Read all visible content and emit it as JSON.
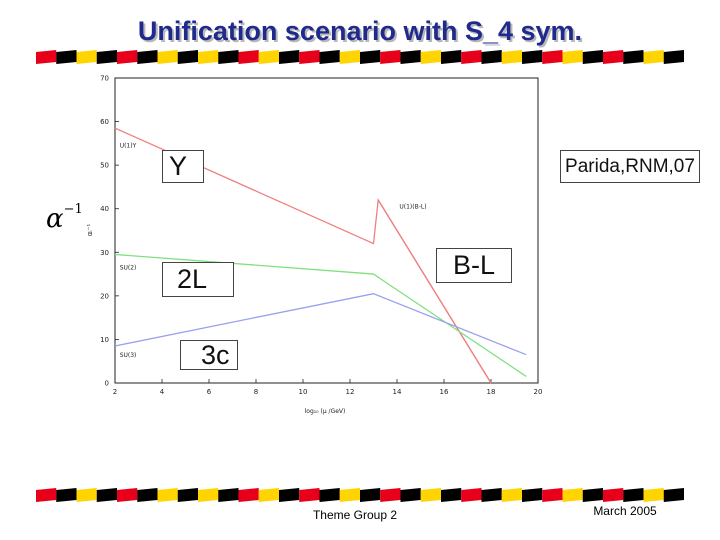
{
  "slide": {
    "title": "Unification scenario with S_4 sym.",
    "footer_center": "Theme Group 2",
    "footer_right": "March 2005"
  },
  "stripe_colors": [
    "#e8001a",
    "#000000",
    "#ffd400"
  ],
  "annotations": {
    "y_label": "Y",
    "parida": "Parida,RNM,07",
    "two_l": "2L",
    "b_minus_l": "B-L",
    "three_c": "3c",
    "alpha_symbol": "α",
    "alpha_exponent": "−1"
  },
  "chart_data": {
    "type": "line",
    "xlabel": "log₁₀ (μ /GeV)",
    "ylabel": "αᵢ⁻¹",
    "xlim": [
      2,
      20
    ],
    "ylim": [
      0,
      70
    ],
    "xticks": [
      "2",
      "4",
      "6",
      "8",
      "10",
      "12",
      "14",
      "16",
      "18",
      "20"
    ],
    "yticks": [
      "0",
      "10",
      "20",
      "30",
      "40",
      "50",
      "60",
      "70"
    ],
    "grid": false,
    "series": [
      {
        "name": "U(1)Y",
        "color": "#ef8080",
        "x": [
          2,
          13,
          13.2,
          18
        ],
        "y": [
          58.5,
          32,
          42,
          0
        ]
      },
      {
        "name": "U(1)(B-L)",
        "color": "#ef8080",
        "x": [
          13.2,
          18
        ],
        "y": [
          42,
          0
        ]
      },
      {
        "name": "SU(2)",
        "color": "#80e080",
        "x": [
          2,
          13,
          19.5
        ],
        "y": [
          29.5,
          25,
          1.5
        ]
      },
      {
        "name": "SU(3)",
        "color": "#9aa0ee",
        "x": [
          2,
          13,
          19.5
        ],
        "y": [
          8.5,
          20.5,
          6.5
        ]
      }
    ],
    "curve_labels": [
      {
        "text": "U(1)Y",
        "x": 2.2,
        "y": 54
      },
      {
        "text": "U(1)(B-L)",
        "x": 14.1,
        "y": 40
      },
      {
        "text": "SU(2)",
        "x": 2.2,
        "y": 26
      },
      {
        "text": "SU(3)",
        "x": 2.2,
        "y": 6
      }
    ]
  }
}
